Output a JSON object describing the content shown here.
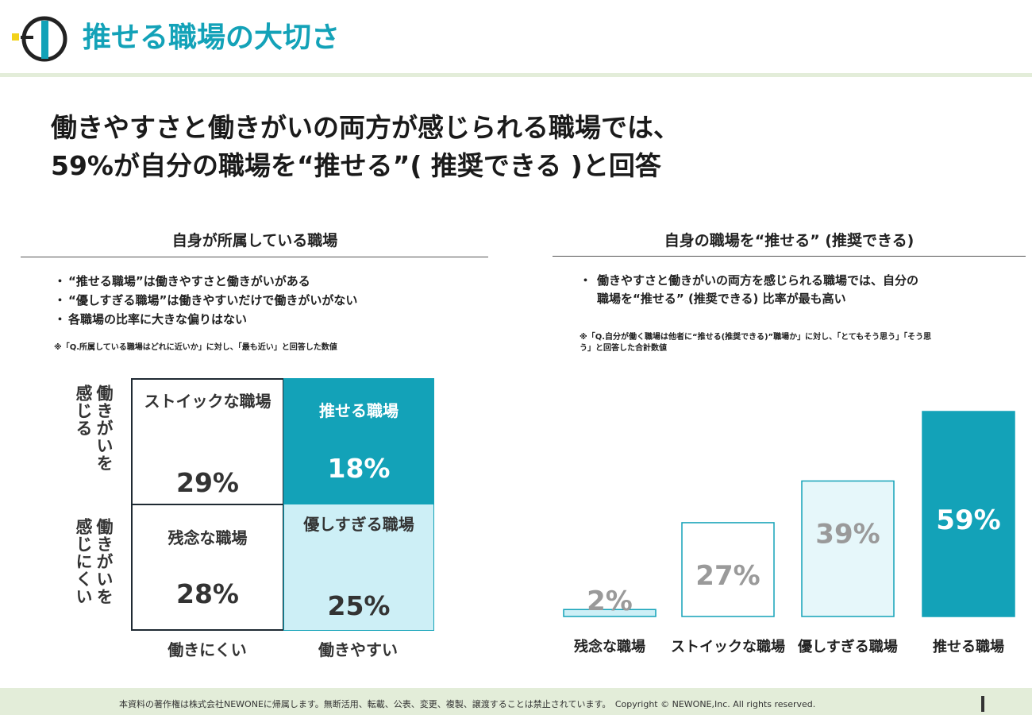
{
  "header": {
    "title": "推せる職場の大切さ",
    "headline_line1": "働きやすさと働きがいの両方が感じられる職場では、",
    "headline_line2": "59%が自分の職場を“推せる”( 推奨できる )と回答"
  },
  "left_panel": {
    "heading": "自身が所属している職場",
    "bullets": [
      "“推せる職場”は働きやすさと働きがいがある",
      "“優しすぎる職場”は働きやすいだけで働きがいがない",
      "各職場の比率に大きな偏りはない"
    ],
    "note": "※「Q.所属している職場はどれに近いか」に対し、「最も近い」と回答した数値",
    "matrix": {
      "y_top": "働きがいを感じる",
      "y_bottom": "働きがいを感じにくい",
      "x_left": "働きにくい",
      "x_right": "働きやすい",
      "cells": {
        "top_left": {
          "name": "ストイックな職場",
          "value": "29%"
        },
        "top_right": {
          "name": "推せる職場",
          "value": "18%"
        },
        "bottom_left": {
          "name": "残念な職場",
          "value": "28%"
        },
        "bottom_right": {
          "name": "優しすぎる職場",
          "value": "25%"
        }
      }
    }
  },
  "right_panel": {
    "heading": "自身の職場を“推せる” (推奨できる)",
    "bullet_line1": "働きやすさと働きがいの両方を感じられる職場では、自分の",
    "bullet_line2": "職場を“推せる” (推奨できる) 比率が最も高い",
    "note_line1": "※「Q.自分が働く職場は他者に“推せる(推奨できる)”職場か」に対し、「とてもそう思う」「そう思",
    "note_line2": "う」と回答した合計数値"
  },
  "chart_data": {
    "type": "bar",
    "categories": [
      "残念な職場",
      "ストイックな職場",
      "優しすぎる職場",
      "推せる職場"
    ],
    "values": [
      2,
      27,
      39,
      59
    ],
    "value_labels": [
      "2%",
      "27%",
      "39%",
      "59%"
    ],
    "title": "",
    "xlabel": "",
    "ylabel": "",
    "ylim": [
      0,
      59
    ],
    "grid": false,
    "bar_fills": [
      "#cdeff6",
      "#ffffff",
      "#e6f7fa",
      "#13a2b8"
    ],
    "bar_strokes": [
      "#13a2b8",
      "#13a2b8",
      "#13a2b8",
      "#13a2b8"
    ],
    "label_colors": [
      "#9a9a9a",
      "#9a9a9a",
      "#9a9a9a",
      "#ffffff"
    ]
  },
  "footer": {
    "text": "本資料の著作権は株式会社NEWONEに帰属します。無断活用、転載、公表、変更、複製、譲渡することは禁止されています。　Copyright © NEWONE,Inc.  All rights reserved."
  },
  "colors": {
    "accent": "#13a2b8",
    "light_accent": "#cdeff6",
    "band": "#e3edd9"
  },
  "icons": [
    "company-logo"
  ]
}
